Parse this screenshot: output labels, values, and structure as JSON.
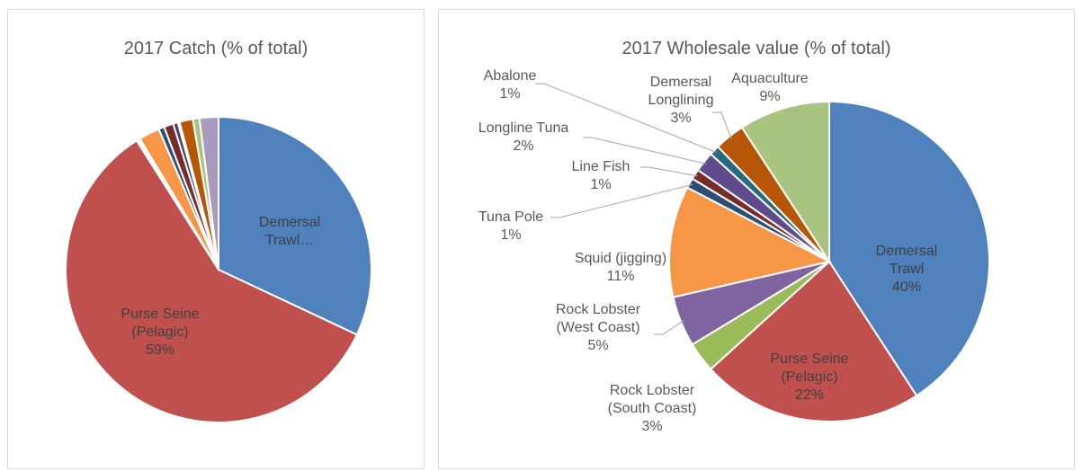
{
  "chart_data": [
    {
      "type": "pie",
      "title": "2017 Catch (% of total)",
      "categories": [
        "Demersal Trawl…",
        "Purse Seine (Pelagic)",
        null,
        null,
        null,
        null,
        null,
        null,
        null,
        null,
        null,
        null
      ],
      "values": [
        32,
        59,
        0.2,
        0.2,
        2.2,
        0.6,
        1,
        0.5,
        0.2,
        1.4,
        0.7,
        2
      ],
      "value_labels": [
        null,
        "59%",
        null,
        null,
        null,
        null,
        null,
        null,
        null,
        null,
        null,
        null
      ],
      "colors": [
        "#4f81bd",
        "#c0504d",
        "#9bbb59",
        "#8064a2",
        "#f79646",
        "#2c4d75",
        "#772c2a",
        "#4d3b62",
        "#276a7c",
        "#b65708",
        "#a9c47f",
        "#a99bbd"
      ]
    },
    {
      "type": "pie",
      "title": "2017 Wholesale value (% of total)",
      "categories": [
        "Demersal Trawl",
        "Purse Seine (Pelagic)",
        "Rock Lobster (South Coast)",
        "Rock Lobster (West Coast)",
        "Squid (jigging)",
        "Tuna Pole",
        "Line Fish",
        "Longline Tuna",
        "Abalone",
        "Demersal Longlining",
        "Aquaculture"
      ],
      "values": [
        40,
        22,
        3,
        5,
        11,
        1,
        1,
        2,
        1,
        3,
        9
      ],
      "value_labels": [
        "40%",
        "22%",
        "3%",
        "5%",
        "11%",
        "1%",
        "1%",
        "2%",
        "1%",
        "3%",
        "9%"
      ],
      "colors": [
        "#4f81bd",
        "#c0504d",
        "#9bbb59",
        "#8064a2",
        "#f79646",
        "#2c4d75",
        "#772c2a",
        "#5f4b8b",
        "#276a7c",
        "#b65708",
        "#a9c47f"
      ]
    }
  ]
}
